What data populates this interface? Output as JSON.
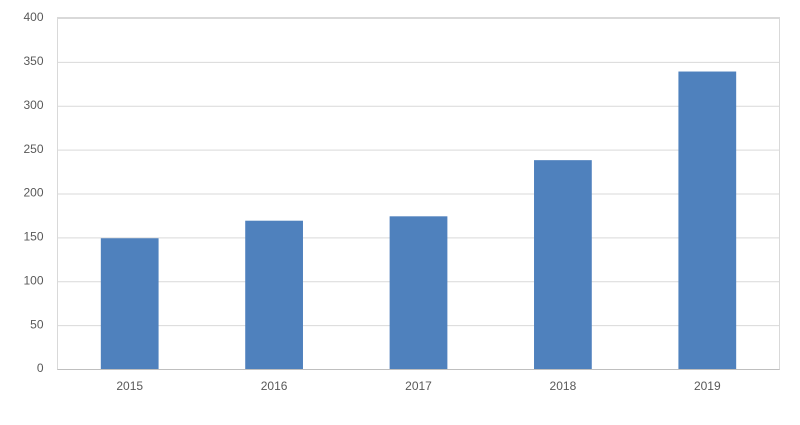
{
  "chart_data": {
    "type": "bar",
    "categories": [
      "2015",
      "2016",
      "2017",
      "2018",
      "2019"
    ],
    "values": [
      149,
      169,
      174,
      238,
      339
    ],
    "color": "#4f81bd",
    "ylim": [
      0,
      400
    ],
    "yticks": [
      0,
      50,
      100,
      150,
      200,
      250,
      300,
      350,
      400
    ],
    "grid": true
  }
}
